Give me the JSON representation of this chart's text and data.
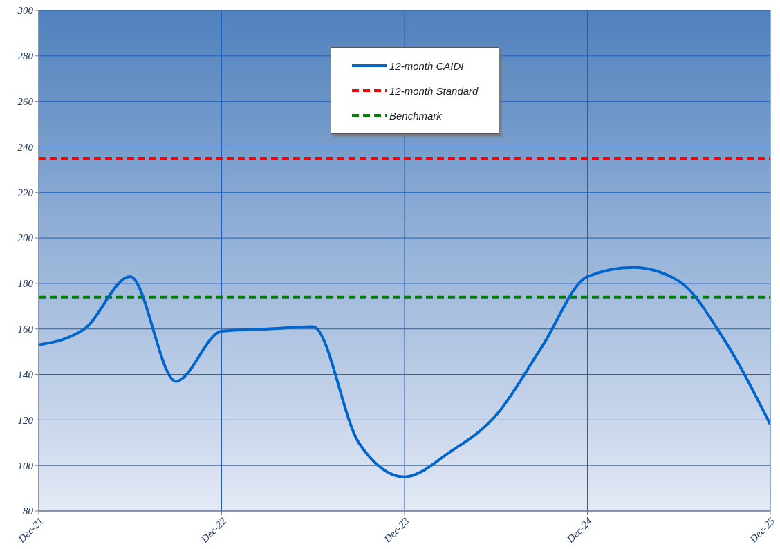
{
  "chart_data": {
    "type": "line",
    "x": [
      "2021-12",
      "2022-03",
      "2022-06",
      "2022-09",
      "2022-12",
      "2023-03",
      "2023-06",
      "2023-09",
      "2023-12",
      "2024-03",
      "2024-06",
      "2024-09",
      "2024-12",
      "2025-03",
      "2025-06",
      "2025-09",
      "2025-12"
    ],
    "series": [
      {
        "name": "12-month CAIDI",
        "color": "#0066cc",
        "values": [
          153,
          160,
          183,
          137,
          159,
          160,
          161,
          110,
          95,
          106,
          122,
          152,
          183,
          187,
          181,
          155,
          118
        ]
      }
    ],
    "ref_lines": [
      {
        "axis": "y",
        "value": 235,
        "label": "12-month Standard",
        "color": "#ff0000",
        "line_style": "dashed"
      },
      {
        "axis": "y",
        "value": 174,
        "label": "Benchmark",
        "color": "#008000",
        "line_style": "dashed"
      }
    ],
    "xlim": [
      "2021-12",
      "2025-12"
    ],
    "xticks": [
      {
        "value": "2021-12",
        "label": "Dec-21"
      },
      {
        "value": "2022-12",
        "label": "Dec-22"
      },
      {
        "value": "2023-12",
        "label": "Dec-23"
      },
      {
        "value": "2024-12",
        "label": "Dec-24"
      },
      {
        "value": "2025-12",
        "label": "Dec-25"
      }
    ],
    "ylim": [
      80,
      300
    ],
    "yticks": [
      80,
      100,
      120,
      140,
      160,
      180,
      200,
      220,
      240,
      260,
      280,
      300
    ],
    "grid": true,
    "legend": "top",
    "marker": "none",
    "line_style": "solid"
  }
}
